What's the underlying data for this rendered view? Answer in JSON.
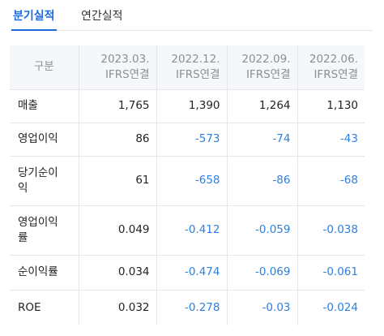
{
  "tabs": [
    {
      "label": "분기실적",
      "active": true
    },
    {
      "label": "연간실적",
      "active": false
    }
  ],
  "table": {
    "header_label": "구분",
    "columns": [
      {
        "period": "2023.03.",
        "basis": "IFRS연결"
      },
      {
        "period": "2022.12.",
        "basis": "IFRS연결"
      },
      {
        "period": "2022.09.",
        "basis": "IFRS연결"
      },
      {
        "period": "2022.06.",
        "basis": "IFRS연결"
      }
    ],
    "rows": [
      {
        "label_line1": "매출",
        "label_line2": "",
        "values": [
          "1,765",
          "1,390",
          "1,264",
          "1,130"
        ]
      },
      {
        "label_line1": "영업이익",
        "label_line2": "",
        "values": [
          "86",
          "-573",
          "-74",
          "-43"
        ]
      },
      {
        "label_line1": "당기순이",
        "label_line2": "익",
        "values": [
          "61",
          "-658",
          "-86",
          "-68"
        ]
      },
      {
        "label_line1": "영업이익",
        "label_line2": "률",
        "values": [
          "0.049",
          "-0.412",
          "-0.059",
          "-0.038"
        ]
      },
      {
        "label_line1": "순이익률",
        "label_line2": "",
        "values": [
          "0.034",
          "-0.474",
          "-0.069",
          "-0.061"
        ]
      },
      {
        "label_line1": "ROE",
        "label_line2": "",
        "values": [
          "0.032",
          "-0.278",
          "-0.03",
          "-0.024"
        ]
      }
    ]
  },
  "colors": {
    "accent": "#1b6ae0",
    "negative": "#2d7fe0",
    "header_bg": "#f6f7f9",
    "border": "#e4e6ea"
  }
}
